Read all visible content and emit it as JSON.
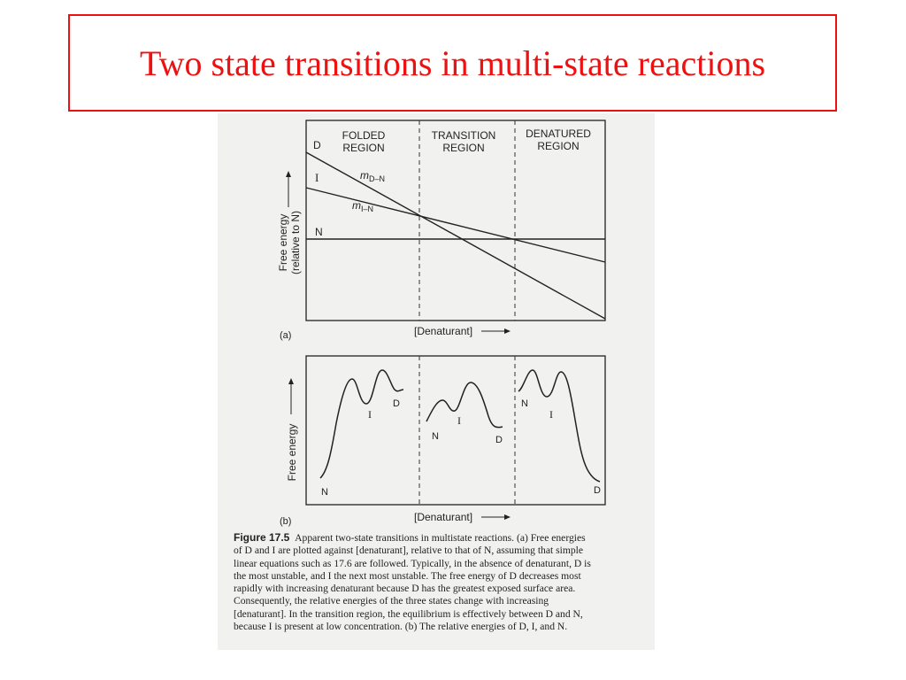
{
  "slide": {
    "title": "Two state transitions in multi-state reactions",
    "title_color": "#ee1111"
  },
  "panel_a": {
    "label": "(a)",
    "regions": [
      {
        "line1": "FOLDED",
        "line2": "REGION"
      },
      {
        "line1": "TRANSITION",
        "line2": "REGION"
      },
      {
        "line1": "DENATURED",
        "line2": "REGION"
      }
    ],
    "state_labels": {
      "d": "D",
      "i": "I",
      "n": "N"
    },
    "slope_labels": {
      "m_dn": {
        "main": "m",
        "sub": "D–N"
      },
      "m_in": {
        "main": "m",
        "sub": "I–N"
      }
    },
    "ylabel_line1": "Free energy",
    "ylabel_line2": "(relative to N)",
    "xlabel": "[Denaturant]"
  },
  "panel_b": {
    "label": "(b)",
    "ylabel": "Free energy",
    "xlabel": "[Denaturant]",
    "folded": {
      "i": "I",
      "d": "D",
      "n": "N"
    },
    "transition": {
      "i": "I",
      "n": "N",
      "d": "D"
    },
    "denatured": {
      "n": "N",
      "i": "I",
      "d": "D"
    }
  },
  "caption": {
    "label": "Figure 17.5",
    "lines": [
      "Apparent two-state transitions in multistate reactions. (a) Free energies",
      "of D and I are plotted against [denaturant], relative to that of N, assuming that simple",
      "linear equations such as 17.6 are followed. Typically, in the absence of denaturant, D is",
      "the most unstable, and I the next most unstable. The free energy of D decreases most",
      "rapidly with increasing denaturant because D has the greatest exposed surface area.",
      "Consequently, the relative energies of the three states change with increasing",
      "[denaturant]. In the transition region, the equilibrium is effectively between D and N,",
      "because I is present at low concentration. (b) The relative energies of D, I, and N."
    ]
  }
}
